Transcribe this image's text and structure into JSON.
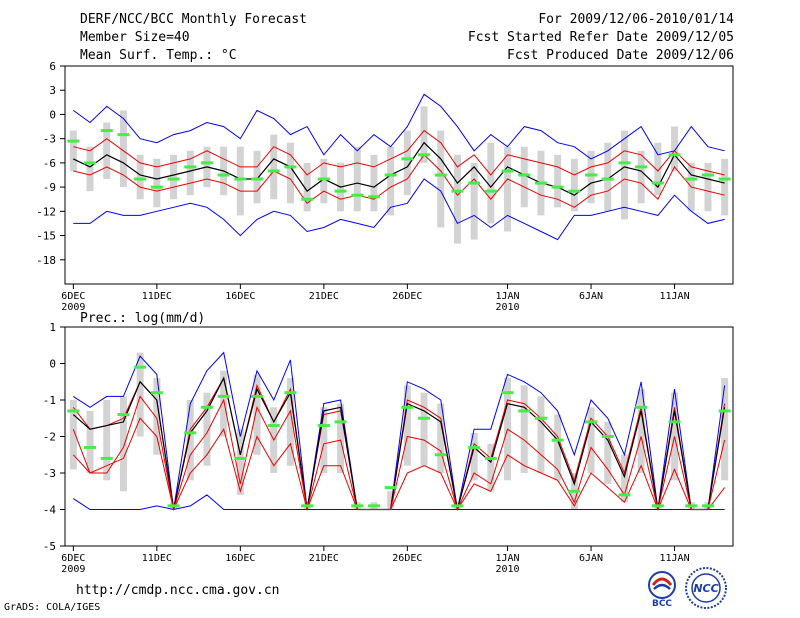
{
  "header": {
    "title": "DERF/NCC/BCC Monthly Forecast",
    "member_size": "Member Size=40",
    "variable": "Mean Surf. Temp.: °C",
    "forecast_period": "For 2009/12/06-2010/01/14",
    "start_date": "Fcst Started Refer Date 2009/12/05",
    "produced_date": "Fcst Produced Date 2009/12/06"
  },
  "footer": {
    "url": "http://cmdp.ncc.cma.gov.cn",
    "credit": "GrADS: COLA/IGES",
    "logo_left_text": "BCC",
    "logo_right_text": "NCC"
  },
  "colors": {
    "envelope": "#0000ff",
    "percentile": "#ee0000",
    "mean": "#000000",
    "box": "#d3d3d3",
    "observed": "#44ee44"
  },
  "chart_data": [
    {
      "type": "line",
      "title": "Mean Surf. Temp.: °C",
      "days": 40,
      "x_ticks": [
        {
          "day": 1,
          "label": "6DEC",
          "sub": "2009"
        },
        {
          "day": 6,
          "label": "11DEC",
          "sub": ""
        },
        {
          "day": 11,
          "label": "16DEC",
          "sub": ""
        },
        {
          "day": 16,
          "label": "21DEC",
          "sub": ""
        },
        {
          "day": 21,
          "label": "26DEC",
          "sub": ""
        },
        {
          "day": 27,
          "label": "1JAN",
          "sub": "2010"
        },
        {
          "day": 32,
          "label": "6JAN",
          "sub": ""
        },
        {
          "day": 37,
          "label": "11JAN",
          "sub": ""
        }
      ],
      "y_ticks": [
        6,
        3,
        0,
        -3,
        -6,
        -9,
        -12,
        -15,
        -18
      ],
      "ylim": [
        -21,
        6
      ],
      "series": [
        {
          "name": "max",
          "color": "#0000ff",
          "values": [
            0.5,
            -1.0,
            1.0,
            -0.5,
            -3.0,
            -3.5,
            -2.5,
            -2.0,
            -1.0,
            -1.5,
            -3.0,
            0.5,
            -0.5,
            -2.5,
            -1.5,
            -5.0,
            -2.5,
            -4.5,
            -2.5,
            -4.0,
            -1.5,
            2.5,
            1.0,
            -1.5,
            -4.5,
            -2.5,
            -4.0,
            -1.5,
            -2.0,
            -3.5,
            -4.0,
            -5.5,
            -4.5,
            -3.0,
            -1.5,
            -5.0,
            -4.5,
            -1.5,
            -4.0,
            -4.5
          ]
        },
        {
          "name": "p_upper",
          "color": "#ee0000",
          "values": [
            -4.0,
            -4.5,
            -3.0,
            -4.5,
            -6.0,
            -6.5,
            -6.0,
            -5.5,
            -4.5,
            -5.5,
            -6.5,
            -6.5,
            -4.0,
            -5.0,
            -7.5,
            -6.0,
            -6.5,
            -6.0,
            -6.5,
            -5.5,
            -4.5,
            -2.0,
            -3.5,
            -6.5,
            -5.0,
            -7.5,
            -5.0,
            -5.5,
            -6.0,
            -6.5,
            -7.5,
            -6.5,
            -6.0,
            -4.5,
            -5.0,
            -7.0,
            -4.5,
            -6.5,
            -7.0,
            -7.5
          ]
        },
        {
          "name": "mean",
          "color": "#000000",
          "values": [
            -5.5,
            -6.5,
            -5.0,
            -6.0,
            -7.5,
            -8.0,
            -7.5,
            -7.0,
            -6.5,
            -7.0,
            -8.0,
            -8.0,
            -5.5,
            -6.5,
            -9.5,
            -8.0,
            -9.0,
            -8.5,
            -9.0,
            -7.5,
            -6.5,
            -3.5,
            -5.5,
            -8.5,
            -6.5,
            -9.0,
            -6.5,
            -7.5,
            -8.5,
            -9.0,
            -10.0,
            -8.5,
            -8.0,
            -6.5,
            -7.0,
            -9.0,
            -5.0,
            -7.5,
            -8.0,
            -8.5
          ]
        },
        {
          "name": "p_lower",
          "color": "#ee0000",
          "values": [
            -7.0,
            -7.5,
            -6.5,
            -7.5,
            -9.0,
            -9.5,
            -9.0,
            -8.5,
            -8.0,
            -8.5,
            -9.5,
            -9.5,
            -7.0,
            -8.0,
            -11.0,
            -9.5,
            -10.5,
            -10.0,
            -10.5,
            -9.0,
            -8.0,
            -5.0,
            -7.0,
            -10.0,
            -8.0,
            -10.5,
            -8.0,
            -9.0,
            -10.0,
            -10.5,
            -11.5,
            -10.0,
            -9.5,
            -8.0,
            -8.5,
            -10.5,
            -6.5,
            -9.0,
            -9.5,
            -10.0
          ]
        },
        {
          "name": "min",
          "color": "#0000ff",
          "values": [
            -13.5,
            -13.5,
            -12.0,
            -12.5,
            -12.5,
            -12.0,
            -11.5,
            -11.0,
            -11.5,
            -13.0,
            -15.0,
            -13.0,
            -12.0,
            -12.5,
            -14.5,
            -14.0,
            -13.0,
            -13.5,
            -14.0,
            -11.5,
            -11.0,
            -8.0,
            -9.5,
            -13.5,
            -12.5,
            -14.0,
            -12.5,
            -13.5,
            -14.5,
            -15.5,
            -12.5,
            -12.5,
            -12.0,
            -11.5,
            -12.0,
            -12.5,
            -10.0,
            -12.0,
            -13.5,
            -13.0
          ]
        }
      ],
      "boxes": [
        [
          -7.0,
          -2.0
        ],
        [
          -9.5,
          -4.0
        ],
        [
          -8.0,
          -1.0
        ],
        [
          -9.0,
          0.5
        ],
        [
          -10.5,
          -5.0
        ],
        [
          -11.5,
          -5.5
        ],
        [
          -10.5,
          -5.0
        ],
        [
          -10.0,
          -4.5
        ],
        [
          -9.0,
          -4.0
        ],
        [
          -10.0,
          -4.0
        ],
        [
          -12.5,
          -4.0
        ],
        [
          -11.0,
          -4.5
        ],
        [
          -10.5,
          -2.5
        ],
        [
          -11.0,
          -3.5
        ],
        [
          -12.0,
          -6.0
        ],
        [
          -11.0,
          -5.5
        ],
        [
          -12.0,
          -6.0
        ],
        [
          -12.0,
          -4.0
        ],
        [
          -12.0,
          -5.0
        ],
        [
          -12.5,
          -4.0
        ],
        [
          -10.0,
          -2.0
        ],
        [
          -6.0,
          1.0
        ],
        [
          -14.0,
          -2.0
        ],
        [
          -16.0,
          -5.0
        ],
        [
          -15.5,
          -6.0
        ],
        [
          -13.5,
          -3.5
        ],
        [
          -14.5,
          -4.0
        ],
        [
          -11.5,
          -4.0
        ],
        [
          -12.5,
          -4.5
        ],
        [
          -11.5,
          -5.0
        ],
        [
          -12.0,
          -5.5
        ],
        [
          -11.0,
          -4.5
        ],
        [
          -12.0,
          -3.5
        ],
        [
          -13.0,
          -2.0
        ],
        [
          -11.0,
          -4.5
        ],
        [
          -10.0,
          -3.5
        ],
        [
          -7.0,
          -1.5
        ],
        [
          -12.0,
          -6.0
        ],
        [
          -12.0,
          -6.0
        ],
        [
          -12.5,
          -5.5
        ]
      ],
      "observed": [
        -3.3,
        -6.0,
        -2.0,
        -2.5,
        -8.0,
        -9.0,
        -8.0,
        -6.5,
        -6.0,
        -7.5,
        -8.0,
        -8.0,
        -7.0,
        -6.5,
        -10.5,
        -8.0,
        -9.5,
        -10.0,
        -10.2,
        -7.5,
        -5.5,
        -5.0,
        -7.5,
        -9.5,
        -8.5,
        -9.5,
        -7.0,
        -7.5,
        -8.5,
        -9.0,
        -9.5,
        -7.5,
        -8.0,
        -6.0,
        -6.5,
        -8.5,
        -5.0,
        -8.0,
        -7.5,
        -8.0
      ]
    },
    {
      "type": "line",
      "title": "Prec.: log(mm/d)",
      "days": 40,
      "x_ticks": [
        {
          "day": 1,
          "label": "6DEC",
          "sub": "2009"
        },
        {
          "day": 6,
          "label": "11DEC",
          "sub": ""
        },
        {
          "day": 11,
          "label": "16DEC",
          "sub": ""
        },
        {
          "day": 16,
          "label": "21DEC",
          "sub": ""
        },
        {
          "day": 21,
          "label": "26DEC",
          "sub": ""
        },
        {
          "day": 27,
          "label": "1JAN",
          "sub": "2010"
        },
        {
          "day": 32,
          "label": "6JAN",
          "sub": ""
        },
        {
          "day": 37,
          "label": "11JAN",
          "sub": ""
        }
      ],
      "y_ticks": [
        1,
        0,
        -1,
        -2,
        -3,
        -4,
        -5
      ],
      "ylim": [
        -5,
        1
      ],
      "series": [
        {
          "name": "max",
          "color": "#0000ff",
          "values": [
            -0.9,
            -1.2,
            -0.9,
            -0.9,
            0.2,
            -0.3,
            -4.0,
            -1.1,
            -0.2,
            0.3,
            -2.0,
            -0.2,
            -1.0,
            0.1,
            -4.0,
            -1.1,
            -1.0,
            -4.0,
            -4.0,
            -4.0,
            -0.5,
            -0.7,
            -1.0,
            -4.0,
            -1.8,
            -1.8,
            -0.3,
            -0.5,
            -0.8,
            -1.3,
            -2.5,
            -1.0,
            -1.5,
            -2.5,
            -0.5,
            -4.0,
            -0.7,
            -4.0,
            -4.0,
            -0.6
          ]
        },
        {
          "name": "p_upper",
          "color": "#ee0000",
          "values": [
            -1.2,
            -1.8,
            -1.7,
            -1.5,
            -0.5,
            -1.0,
            -4.0,
            -1.8,
            -1.2,
            -0.4,
            -2.5,
            -0.6,
            -1.6,
            -0.7,
            -4.0,
            -1.4,
            -1.3,
            -4.0,
            -4.0,
            -4.0,
            -1.0,
            -1.2,
            -1.5,
            -4.0,
            -2.2,
            -2.6,
            -1.0,
            -1.1,
            -1.5,
            -2.0,
            -3.2,
            -1.5,
            -2.0,
            -3.0,
            -1.2,
            -4.0,
            -1.2,
            -4.0,
            -4.0,
            -1.1
          ]
        },
        {
          "name": "mean",
          "color": "#000000",
          "values": [
            -1.4,
            -1.8,
            -1.7,
            -1.6,
            -0.5,
            -1.0,
            -4.0,
            -1.9,
            -1.3,
            -0.4,
            -2.5,
            -0.7,
            -1.6,
            -0.8,
            -4.0,
            -1.3,
            -1.2,
            -4.0,
            -4.0,
            -4.0,
            -1.1,
            -1.3,
            -1.6,
            -4.0,
            -2.3,
            -2.7,
            -1.1,
            -1.2,
            -1.6,
            -2.1,
            -3.3,
            -1.6,
            -2.1,
            -3.1,
            -1.3,
            -4.0,
            -1.3,
            -4.0,
            -4.0,
            -1.2
          ]
        },
        {
          "name": "p_lower",
          "color": "#ee0000",
          "values": [
            -1.8,
            -3.0,
            -3.0,
            -2.3,
            -0.9,
            -1.5,
            -4.0,
            -2.5,
            -1.9,
            -1.0,
            -3.3,
            -1.2,
            -2.1,
            -1.3,
            -4.0,
            -2.2,
            -2.1,
            -4.0,
            -4.0,
            -4.0,
            -2.0,
            -2.1,
            -2.4,
            -4.0,
            -3.0,
            -3.3,
            -1.8,
            -2.1,
            -2.5,
            -2.9,
            -3.8,
            -2.3,
            -2.9,
            -3.6,
            -2.0,
            -4.0,
            -2.0,
            -4.0,
            -4.0,
            -2.1
          ]
        },
        {
          "name": "min",
          "color": "#0000ff",
          "values": [
            -3.7,
            -4.0,
            -4.0,
            -4.0,
            -4.0,
            -3.9,
            -4.0,
            -3.9,
            -3.6,
            -4.0,
            -4.0,
            -4.0,
            -4.0,
            -4.0,
            -4.0,
            -4.0,
            -4.0,
            -4.0,
            -4.0,
            -4.0,
            -4.0,
            -4.0,
            -4.0,
            -4.0,
            -4.0,
            -4.0,
            -4.0,
            -4.0,
            -4.0,
            -4.0,
            -4.0,
            -4.0,
            -4.0,
            -4.0,
            -4.0,
            -4.0,
            -4.0,
            -4.0,
            -4.0,
            -4.0
          ]
        },
        {
          "name": "lower_envelope",
          "color": "#ee0000",
          "values": [
            -2.5,
            -3.0,
            -2.8,
            -2.6,
            -1.5,
            -2.0,
            -4.0,
            -3.0,
            -2.5,
            -1.8,
            -3.5,
            -2.0,
            -2.8,
            -2.2,
            -4.0,
            -2.8,
            -2.8,
            -4.0,
            -4.0,
            -4.0,
            -3.0,
            -2.8,
            -3.0,
            -4.0,
            -3.3,
            -3.5,
            -2.5,
            -2.8,
            -3.0,
            -3.2,
            -3.9,
            -3.0,
            -3.4,
            -3.8,
            -2.8,
            -4.0,
            -2.9,
            -4.0,
            -4.0,
            -3.4
          ]
        }
      ],
      "boxes": [
        [
          -2.9,
          -1.0
        ],
        [
          -3.0,
          -1.3
        ],
        [
          -3.2,
          -1.0
        ],
        [
          -3.5,
          -0.9
        ],
        [
          -2.0,
          0.3
        ],
        [
          -2.5,
          -0.4
        ],
        [
          -4.0,
          -3.8
        ],
        [
          -3.2,
          -1.0
        ],
        [
          -2.8,
          -0.8
        ],
        [
          -2.0,
          -0.2
        ],
        [
          -3.6,
          -1.8
        ],
        [
          -2.5,
          -0.3
        ],
        [
          -3.0,
          -1.2
        ],
        [
          -2.8,
          -0.4
        ],
        [
          -4.0,
          -3.8
        ],
        [
          -3.0,
          -1.2
        ],
        [
          -3.0,
          -1.1
        ],
        [
          -4.0,
          -3.8
        ],
        [
          -4.0,
          -3.8
        ],
        [
          -4.0,
          -3.5
        ],
        [
          -2.8,
          -0.6
        ],
        [
          -2.8,
          -0.8
        ],
        [
          -3.0,
          -1.1
        ],
        [
          -4.0,
          -3.8
        ],
        [
          -3.2,
          -1.9
        ],
        [
          -3.5,
          -2.2
        ],
        [
          -3.2,
          -0.4
        ],
        [
          -3.0,
          -0.6
        ],
        [
          -3.0,
          -0.9
        ],
        [
          -3.2,
          -1.4
        ],
        [
          -4.0,
          -3.0
        ],
        [
          -3.0,
          -1.2
        ],
        [
          -3.3,
          -1.6
        ],
        [
          -3.8,
          -2.5
        ],
        [
          -3.0,
          -0.7
        ],
        [
          -4.0,
          -3.8
        ],
        [
          -3.2,
          -0.8
        ],
        [
          -4.0,
          -3.8
        ],
        [
          -4.0,
          -3.8
        ],
        [
          -3.2,
          -0.4
        ]
      ],
      "observed": [
        -1.3,
        -2.3,
        -2.6,
        -1.4,
        -0.1,
        -0.8,
        -3.9,
        -1.9,
        -1.2,
        -0.9,
        -2.6,
        -0.9,
        -1.7,
        -0.8,
        -3.9,
        -1.7,
        -1.6,
        -3.9,
        -3.9,
        -3.4,
        -1.2,
        -1.5,
        -2.5,
        -3.9,
        -2.3,
        -2.6,
        -0.8,
        -1.3,
        -1.5,
        -2.1,
        -3.5,
        -1.6,
        -2.0,
        -3.6,
        -1.2,
        -3.9,
        -1.6,
        -3.9,
        -3.9,
        -1.3
      ]
    }
  ]
}
